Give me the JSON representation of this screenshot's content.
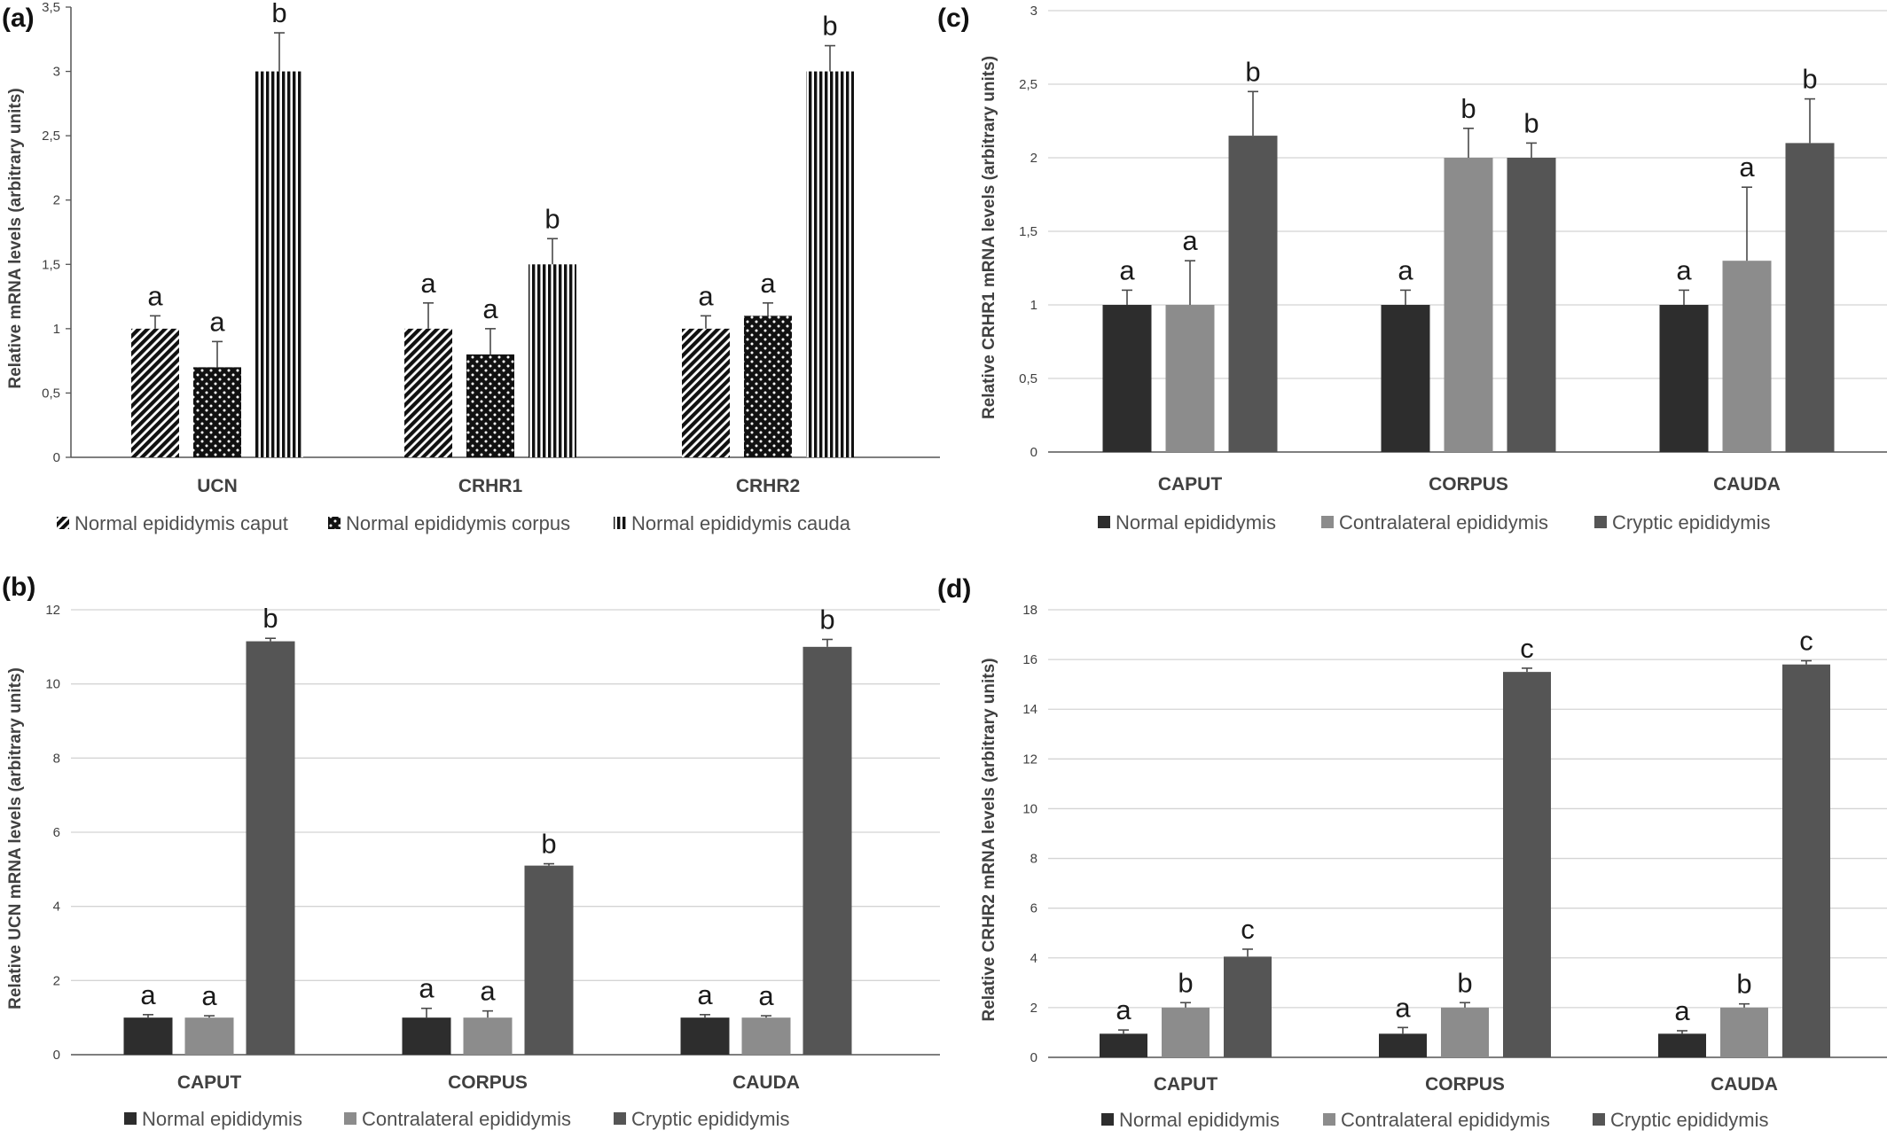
{
  "chart_data": [
    {
      "panel": "(a)",
      "type": "bar",
      "ylabel": "Relative mRNA levels (arbitrary units)",
      "ylim": [
        0,
        3.5
      ],
      "yticks": [
        "0",
        "0,5",
        "1",
        "1,5",
        "2",
        "2,5",
        "3",
        "3,5"
      ],
      "grid": false,
      "legend": "bottom",
      "categories": [
        "UCN",
        "CRHR1",
        "CRHR2"
      ],
      "series": [
        {
          "name": "Normal epididymis caput",
          "pattern": "diagonal",
          "color": "#111111",
          "values": [
            1.0,
            1.0,
            1.0
          ],
          "errors": [
            0.1,
            0.2,
            0.1
          ],
          "letters": [
            "a",
            "a",
            "a"
          ]
        },
        {
          "name": "Normal epididymis corpus",
          "pattern": "dots",
          "color": "#111111",
          "values": [
            0.7,
            0.8,
            1.1
          ],
          "errors": [
            0.2,
            0.2,
            0.1
          ],
          "letters": [
            "a",
            "a",
            "a"
          ]
        },
        {
          "name": "Normal epididymis cauda",
          "pattern": "vertical",
          "color": "#111111",
          "values": [
            3.0,
            1.5,
            3.0
          ],
          "errors": [
            0.3,
            0.2,
            0.2
          ],
          "letters": [
            "b",
            "b",
            "b"
          ]
        }
      ]
    },
    {
      "panel": "(b)",
      "type": "bar",
      "ylabel": "Relative UCN mRNA levels (arbitrary units)",
      "ylim": [
        0,
        12
      ],
      "yticks": [
        "0",
        "2",
        "4",
        "6",
        "8",
        "10",
        "12"
      ],
      "grid": true,
      "legend": "bottom",
      "categories": [
        "CAPUT",
        "CORPUS",
        "CAUDA"
      ],
      "series": [
        {
          "name": "Normal epididymis",
          "color": "#2d2d2d",
          "values": [
            1.0,
            1.0,
            1.0
          ],
          "errors": [
            0.08,
            0.25,
            0.08
          ],
          "letters": [
            "a",
            "a",
            "a"
          ]
        },
        {
          "name": "Contralateral epididymis",
          "color": "#8c8c8c",
          "values": [
            1.0,
            1.0,
            1.0
          ],
          "errors": [
            0.05,
            0.18,
            0.05
          ],
          "letters": [
            "a",
            "a",
            "a"
          ]
        },
        {
          "name": "Cryptic epididymis",
          "color": "#555555",
          "values": [
            11.15,
            5.1,
            11.0
          ],
          "errors": [
            0.08,
            0.05,
            0.2
          ],
          "letters": [
            "b",
            "b",
            "b"
          ]
        }
      ]
    },
    {
      "panel": "(c)",
      "type": "bar",
      "ylabel": "Relative CRHR1 mRNA levels (arbitrary units)",
      "ylim": [
        0,
        3
      ],
      "yticks": [
        "0",
        "0,5",
        "1",
        "1,5",
        "2",
        "2,5",
        "3"
      ],
      "grid": true,
      "legend": "bottom",
      "categories": [
        "CAPUT",
        "CORPUS",
        "CAUDA"
      ],
      "series": [
        {
          "name": "Normal epididymis",
          "color": "#2d2d2d",
          "values": [
            1.0,
            1.0,
            1.0
          ],
          "errors": [
            0.1,
            0.1,
            0.1
          ],
          "letters": [
            "a",
            "a",
            "a"
          ]
        },
        {
          "name": "Contralateral epididymis",
          "color": "#8c8c8c",
          "values": [
            1.0,
            2.0,
            1.3
          ],
          "errors": [
            0.3,
            0.2,
            0.5
          ],
          "letters": [
            "a",
            "b",
            "a"
          ]
        },
        {
          "name": "Cryptic epididymis",
          "color": "#555555",
          "values": [
            2.15,
            2.0,
            2.1
          ],
          "errors": [
            0.3,
            0.1,
            0.3
          ],
          "letters": [
            "b",
            "b",
            "b"
          ]
        }
      ]
    },
    {
      "panel": "(d)",
      "type": "bar",
      "ylabel": "Relative CRHR2 mRNA levels (arbitrary units)",
      "ylim": [
        0,
        18
      ],
      "yticks": [
        "0",
        "2",
        "4",
        "6",
        "8",
        "10",
        "12",
        "14",
        "16",
        "18"
      ],
      "grid": true,
      "legend": "bottom",
      "categories": [
        "CAPUT",
        "CORPUS",
        "CAUDA"
      ],
      "series": [
        {
          "name": "Normal epididymis",
          "color": "#2d2d2d",
          "values": [
            0.95,
            0.95,
            0.95
          ],
          "errors": [
            0.15,
            0.25,
            0.12
          ],
          "letters": [
            "a",
            "a",
            "a"
          ]
        },
        {
          "name": "Contralateral epididymis",
          "color": "#8c8c8c",
          "values": [
            2.0,
            2.0,
            2.0
          ],
          "errors": [
            0.2,
            0.2,
            0.15
          ],
          "letters": [
            "b",
            "b",
            "b"
          ]
        },
        {
          "name": "Cryptic epididymis",
          "color": "#555555",
          "values": [
            4.05,
            15.5,
            15.8
          ],
          "errors": [
            0.3,
            0.15,
            0.15
          ],
          "letters": [
            "c",
            "c",
            "c"
          ]
        }
      ]
    }
  ]
}
